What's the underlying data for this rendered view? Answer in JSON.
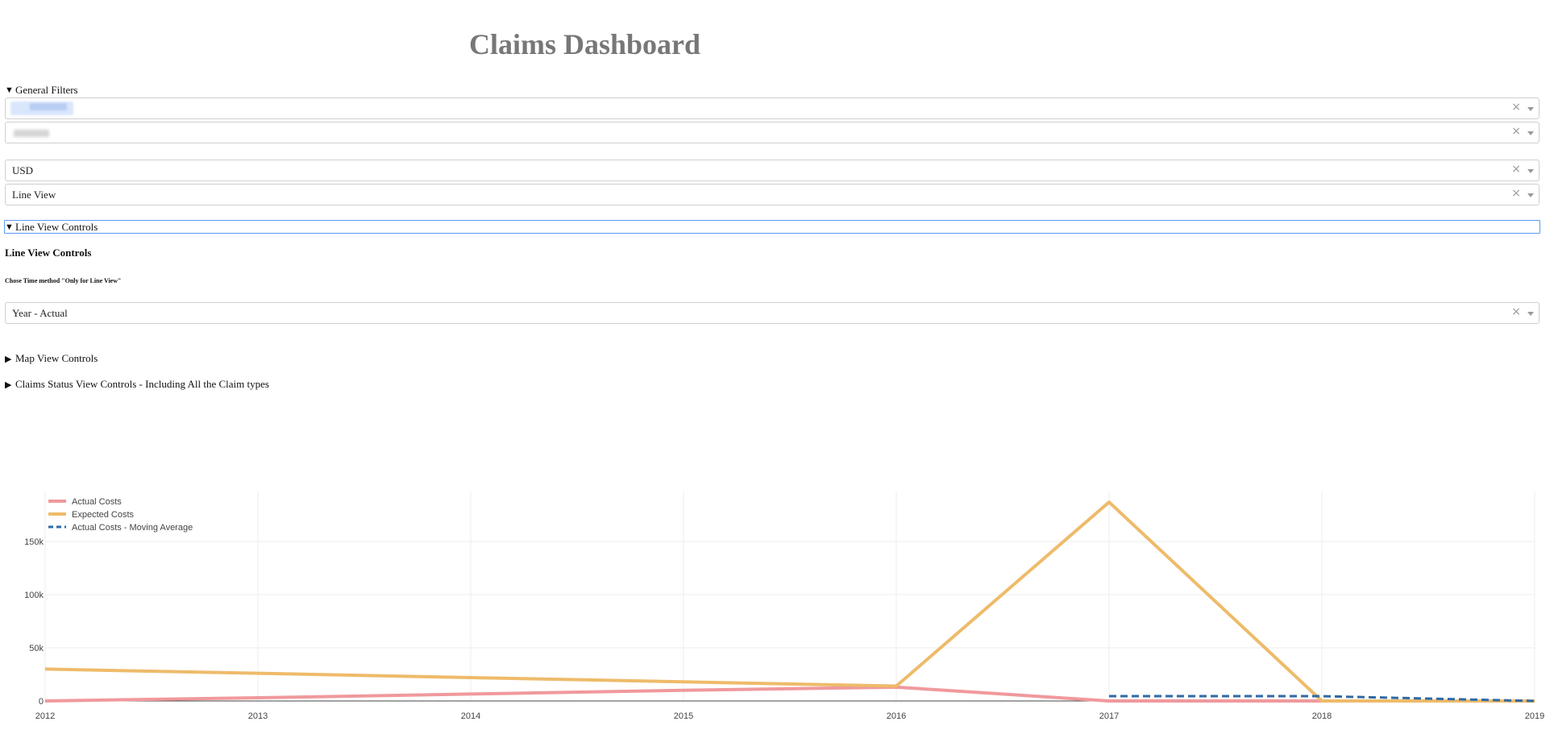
{
  "page": {
    "title": "Claims Dashboard"
  },
  "general_filters": {
    "label": "General Filters",
    "expanded": true,
    "selects": [
      {
        "value": ""
      },
      {
        "value": ""
      },
      {
        "value": "USD"
      },
      {
        "value": "Line View"
      }
    ]
  },
  "line_view_controls": {
    "summary_label": "Line View Controls",
    "expanded": true,
    "heading": "Line View Controls",
    "time_method_label": "Chose Time method \"Only for Line View\"",
    "time_method_value": "Year - Actual"
  },
  "map_view_controls": {
    "summary_label": "Map View Controls",
    "expanded": false
  },
  "claims_status_controls": {
    "summary_label": "Claims Status View Controls - Including All the Claim types",
    "expanded": false
  },
  "icons": {
    "clear": "clear-x-icon",
    "dropdown": "chevron-down-icon",
    "expanded": "triangle-down-icon",
    "collapsed": "triangle-right-icon"
  },
  "chart_data": {
    "type": "line",
    "title": "",
    "xlabel": "",
    "ylabel": "",
    "x": [
      2012,
      2013,
      2014,
      2015,
      2016,
      2017,
      2018,
      2019
    ],
    "x_tick_labels": [
      "2012",
      "2013",
      "2014",
      "2015",
      "2016",
      "2017",
      "2018",
      "2019"
    ],
    "y_ticks": [
      0,
      50000,
      100000,
      150000
    ],
    "y_tick_labels": [
      "0",
      "50k",
      "100k",
      "150k"
    ],
    "xlim": [
      2012,
      2019
    ],
    "ylim": [
      0,
      197000
    ],
    "grid": true,
    "legend_position": "top-left",
    "series": [
      {
        "name": "Actual Costs",
        "color": "#f0999d",
        "style": "solid",
        "x": [
          2012,
          2013,
          2014,
          2015,
          2016,
          2017,
          2018,
          2019
        ],
        "y": [
          0,
          3000,
          6500,
          10000,
          13000,
          0,
          0,
          0
        ]
      },
      {
        "name": "Expected Costs",
        "color": "#eebb6a",
        "style": "solid",
        "x": [
          2012,
          2013,
          2014,
          2015,
          2016,
          2017,
          2018,
          2019
        ],
        "y": [
          30000,
          26000,
          22000,
          18000,
          14000,
          187000,
          0,
          0
        ]
      },
      {
        "name": "Actual Costs - Moving Average",
        "color": "#2e6aa6",
        "style": "dash",
        "x": [
          2017,
          2018,
          2019
        ],
        "y": [
          4500,
          4500,
          0
        ]
      }
    ]
  }
}
